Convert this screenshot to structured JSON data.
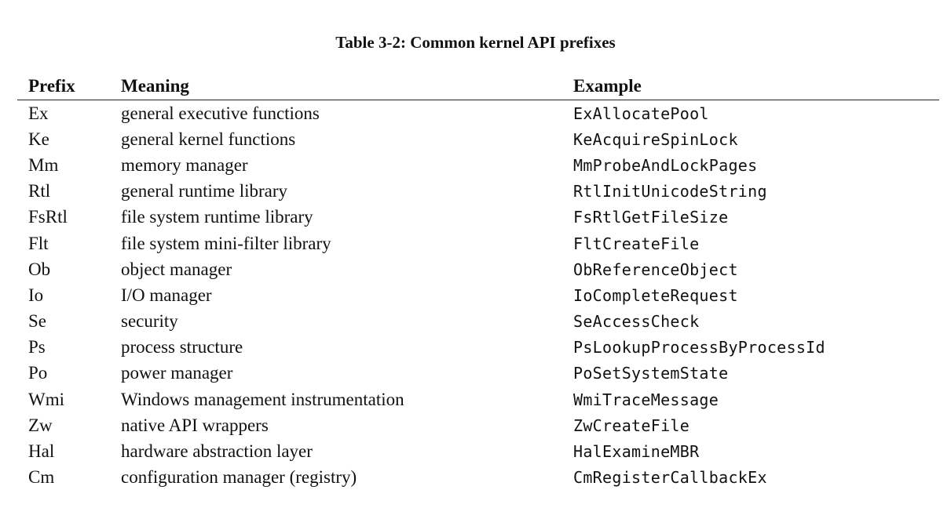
{
  "caption": "Table 3-2: Common kernel API prefixes",
  "headers": {
    "prefix": "Prefix",
    "meaning": "Meaning",
    "example": "Example"
  },
  "rows": [
    {
      "prefix": "Ex",
      "meaning": "general executive functions",
      "example": "ExAllocatePool"
    },
    {
      "prefix": "Ke",
      "meaning": "general kernel functions",
      "example": "KeAcquireSpinLock"
    },
    {
      "prefix": "Mm",
      "meaning": "memory manager",
      "example": "MmProbeAndLockPages"
    },
    {
      "prefix": "Rtl",
      "meaning": "general runtime library",
      "example": "RtlInitUnicodeString"
    },
    {
      "prefix": "FsRtl",
      "meaning": "file system runtime library",
      "example": "FsRtlGetFileSize"
    },
    {
      "prefix": "Flt",
      "meaning": "file system mini-filter library",
      "example": "FltCreateFile"
    },
    {
      "prefix": "Ob",
      "meaning": "object manager",
      "example": "ObReferenceObject"
    },
    {
      "prefix": "Io",
      "meaning": "I/O manager",
      "example": "IoCompleteRequest"
    },
    {
      "prefix": "Se",
      "meaning": "security",
      "example": "SeAccessCheck"
    },
    {
      "prefix": "Ps",
      "meaning": "process structure",
      "example": "PsLookupProcessByProcessId"
    },
    {
      "prefix": "Po",
      "meaning": "power manager",
      "example": "PoSetSystemState"
    },
    {
      "prefix": "Wmi",
      "meaning": "Windows management instrumentation",
      "example": "WmiTraceMessage"
    },
    {
      "prefix": "Zw",
      "meaning": "native API wrappers",
      "example": "ZwCreateFile"
    },
    {
      "prefix": "Hal",
      "meaning": "hardware abstraction layer",
      "example": "HalExamineMBR"
    },
    {
      "prefix": "Cm",
      "meaning": "configuration manager (registry)",
      "example": "CmRegisterCallbackEx"
    }
  ]
}
